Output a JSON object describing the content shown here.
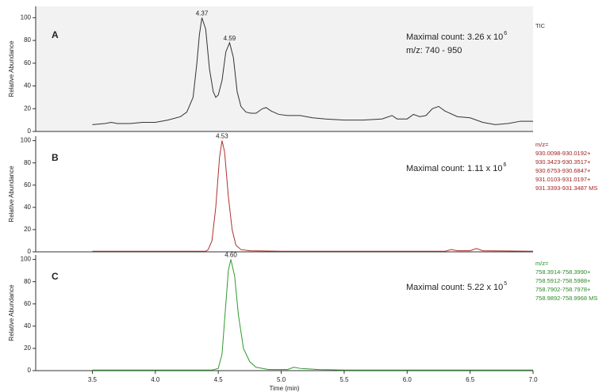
{
  "chart_data": [
    {
      "type": "line",
      "panel_label": "A",
      "y_label": "Relative Abundance",
      "max_count_text": "Maximal count: 3.26 x 10",
      "max_count_exponent": "6",
      "mz_range": "m/z: 740 - 950",
      "trace_label": [
        "TIC"
      ],
      "color": "#333333",
      "label_color": "#333333",
      "background": "#f2f2f2",
      "xlim": [
        3.05,
        7.0
      ],
      "ylim": [
        0,
        110
      ],
      "yticks": [
        0,
        20,
        40,
        60,
        80,
        100
      ],
      "peaks": [
        4.37,
        4.59
      ],
      "x": [
        3.5,
        3.6,
        3.65,
        3.7,
        3.8,
        3.9,
        4.0,
        4.1,
        4.2,
        4.25,
        4.3,
        4.33,
        4.35,
        4.37,
        4.4,
        4.43,
        4.46,
        4.48,
        4.5,
        4.53,
        4.56,
        4.59,
        4.62,
        4.65,
        4.68,
        4.72,
        4.76,
        4.8,
        4.85,
        4.88,
        4.92,
        4.98,
        5.05,
        5.15,
        5.25,
        5.35,
        5.5,
        5.65,
        5.8,
        5.88,
        5.92,
        6.0,
        6.05,
        6.1,
        6.15,
        6.2,
        6.25,
        6.3,
        6.4,
        6.5,
        6.6,
        6.7,
        6.8,
        6.9,
        7.0
      ],
      "values": [
        6,
        7,
        8,
        7,
        7,
        8,
        8,
        10,
        13,
        17,
        30,
        60,
        85,
        100,
        90,
        55,
        35,
        30,
        32,
        45,
        70,
        78,
        65,
        35,
        22,
        17,
        16,
        16,
        20,
        21,
        18,
        15,
        14,
        14,
        12,
        11,
        10,
        10,
        11,
        14,
        11,
        11,
        15,
        13,
        14,
        20,
        22,
        18,
        13,
        12,
        8,
        6,
        7,
        9,
        9
      ]
    },
    {
      "type": "line",
      "panel_label": "B",
      "y_label": "Relative Abundance",
      "max_count_text": "Maximal count: 1.11 x 10",
      "max_count_exponent": "6",
      "trace_label": [
        "m/z=",
        "930.0098-930.0192+",
        "930.3423-930.3517+",
        "930.6753-930.6847+",
        "931.0103-931.0197+",
        "931.3393-931.3487  MS"
      ],
      "color": "#b03030",
      "label_color": "#9b1c1c",
      "background": "#ffffff",
      "xlim": [
        3.05,
        7.0
      ],
      "ylim": [
        0,
        104
      ],
      "yticks": [
        0,
        20,
        40,
        60,
        80,
        100
      ],
      "peaks": [
        4.53
      ],
      "x": [
        3.5,
        4.0,
        4.4,
        4.42,
        4.45,
        4.48,
        4.51,
        4.53,
        4.55,
        4.58,
        4.61,
        4.64,
        4.68,
        4.75,
        5.0,
        6.0,
        6.3,
        6.35,
        6.4,
        6.5,
        6.55,
        6.6,
        7.0
      ],
      "values": [
        0.5,
        0.5,
        0.5,
        2,
        10,
        40,
        85,
        100,
        90,
        50,
        20,
        6,
        2,
        1,
        0.5,
        0.5,
        0.5,
        2,
        1,
        1,
        3,
        1,
        0.5
      ]
    },
    {
      "type": "line",
      "panel_label": "C",
      "y_label": "Relative Abundance",
      "max_count_text": "Maximal count: 5.22 x 10",
      "max_count_exponent": "5",
      "trace_label": [
        "m/z=",
        "758.3914-758.3990+",
        "758.5912-758.5988+",
        "758.7902-758.7978+",
        "758.9892-758.9968  MS"
      ],
      "color": "#2e9a2e",
      "label_color": "#2a8a2a",
      "background": "#ffffff",
      "xlim": [
        3.05,
        7.0
      ],
      "ylim": [
        0,
        104
      ],
      "yticks": [
        0,
        20,
        40,
        60,
        80,
        100
      ],
      "peaks": [
        {
          "value": 4.6,
          "label": "4.60"
        }
      ],
      "x_label": "Time (min)",
      "xticks": [
        3.5,
        {
          "value": 4,
          "label": "4.0"
        },
        4.5,
        {
          "value": 5,
          "label": "5.0"
        },
        5.5,
        {
          "value": 6,
          "label": "6.0"
        },
        6.5,
        {
          "value": 7,
          "label": "7.0"
        }
      ],
      "x": [
        3.5,
        4.0,
        4.45,
        4.5,
        4.53,
        4.56,
        4.58,
        4.6,
        4.63,
        4.66,
        4.7,
        4.75,
        4.8,
        4.9,
        5.05,
        5.1,
        5.15,
        5.3,
        5.5,
        6.0,
        7.0
      ],
      "values": [
        0.5,
        0.5,
        0.5,
        2,
        15,
        60,
        90,
        100,
        85,
        50,
        20,
        8,
        3,
        1,
        1,
        3,
        2,
        1,
        0.5,
        0.5,
        0.5
      ]
    }
  ]
}
